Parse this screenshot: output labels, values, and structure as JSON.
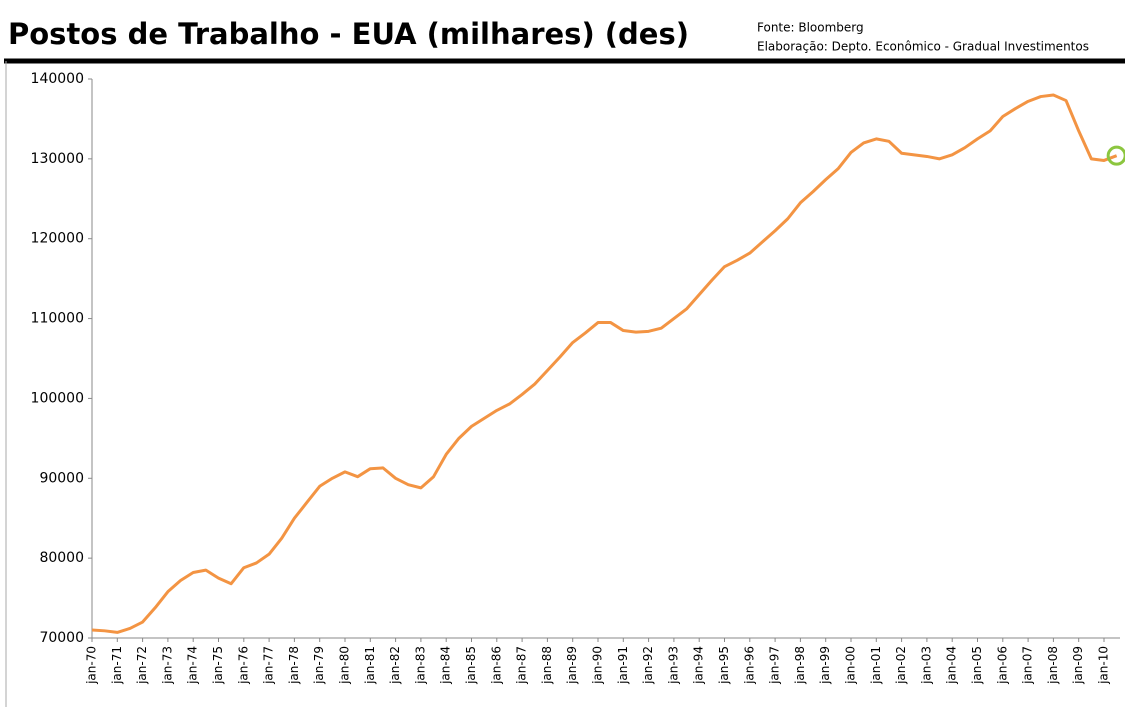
{
  "chart_data": {
    "type": "line",
    "title": "Postos de Trabalho - EUA (milhares) (des)",
    "source": "Fonte: Bloomberg",
    "credit": "Elaboração: Depto. Econômico - Gradual Investimentos",
    "categories": [
      "jan-70",
      null,
      "jan-71",
      null,
      "jan-72",
      null,
      "jan-73",
      null,
      "jan-74",
      null,
      "jan-75",
      null,
      "jan-76",
      null,
      "jan-77",
      null,
      "jan-78",
      null,
      "jan-79",
      null,
      "jan-80",
      null,
      "jan-81",
      null,
      "jan-82",
      null,
      "jan-83",
      null,
      "jan-84",
      null,
      "jan-85",
      null,
      "jan-86",
      null,
      "jan-87",
      null,
      "jan-88",
      null,
      "jan-89",
      null,
      "jan-90",
      null,
      "jan-91",
      null,
      "jan-92",
      null,
      "jan-93",
      null,
      "jan-94",
      null,
      "jan-95",
      null,
      "jan-96",
      null,
      "jan-97",
      null,
      "jan-98",
      null,
      "jan-99",
      null,
      "jan-00",
      null,
      "jan-01",
      null,
      "jan-02",
      null,
      "jan-03",
      null,
      "jan-04",
      null,
      "jan-05",
      null,
      "jan-06",
      null,
      "jan-07",
      null,
      "jan-08",
      null,
      "jan-09",
      null,
      "jan-10",
      null
    ],
    "series": [
      {
        "name": "Postos de Trabalho",
        "color": "#f39443",
        "values": [
          71000,
          70900,
          70700,
          71200,
          72000,
          73800,
          75800,
          77200,
          78200,
          78500,
          77500,
          76800,
          78800,
          79400,
          80500,
          82500,
          85000,
          87000,
          89000,
          90000,
          90800,
          90200,
          91200,
          91300,
          90000,
          89200,
          88800,
          90200,
          93000,
          95000,
          96500,
          97500,
          98500,
          99300,
          100500,
          101800,
          103500,
          105200,
          107000,
          108200,
          109500,
          109500,
          108500,
          108300,
          108400,
          108800,
          110000,
          111200,
          113000,
          114800,
          116500,
          117300,
          118200,
          119600,
          121000,
          122500,
          124500,
          125900,
          127400,
          128800,
          130800,
          132000,
          132500,
          132200,
          130700,
          130500,
          130300,
          130000,
          130500,
          131400,
          132500,
          133500,
          135300,
          136300,
          137200,
          137800,
          138000,
          137300,
          133500,
          130000,
          129800,
          130400
        ]
      }
    ],
    "ylim": [
      70000,
      140000
    ],
    "yticks": [
      70000,
      80000,
      90000,
      100000,
      110000,
      120000,
      130000,
      140000
    ],
    "highlight_color": "#8cc63f",
    "grid": false
  }
}
